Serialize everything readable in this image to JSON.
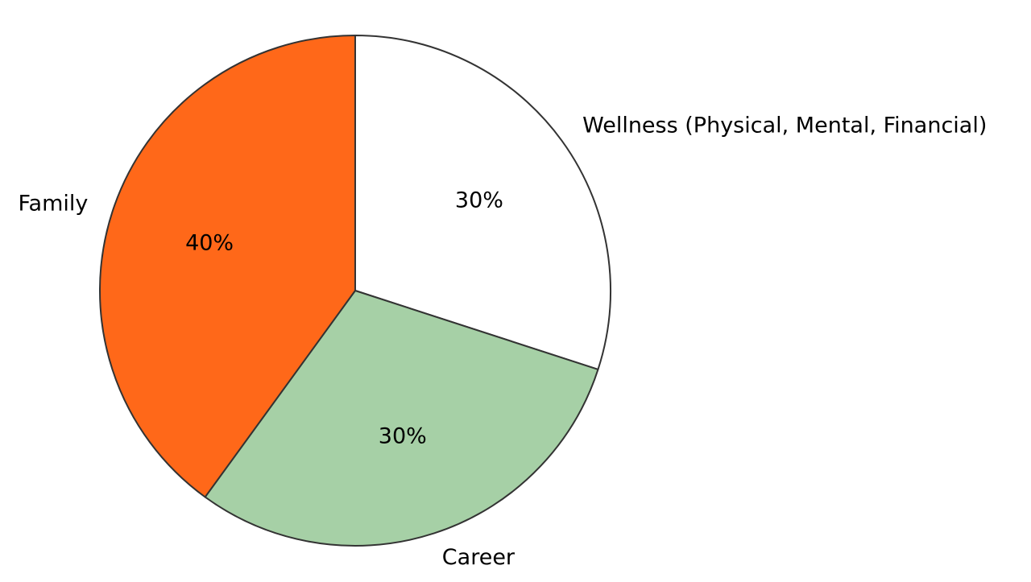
{
  "chart_data": {
    "type": "pie",
    "title": "",
    "slices": [
      {
        "label": "Wellness (Physical, Mental, Financial)",
        "value": 30,
        "pct_label": "30%",
        "color": "#ffffff"
      },
      {
        "label": "Career",
        "value": 30,
        "pct_label": "30%",
        "color": "#a6d0a6"
      },
      {
        "label": "Family",
        "value": 40,
        "pct_label": "40%",
        "color": "#ff6819"
      }
    ],
    "start_angle_deg": 90,
    "direction": "clockwise",
    "edge_color": "#333333",
    "legend": "none"
  }
}
